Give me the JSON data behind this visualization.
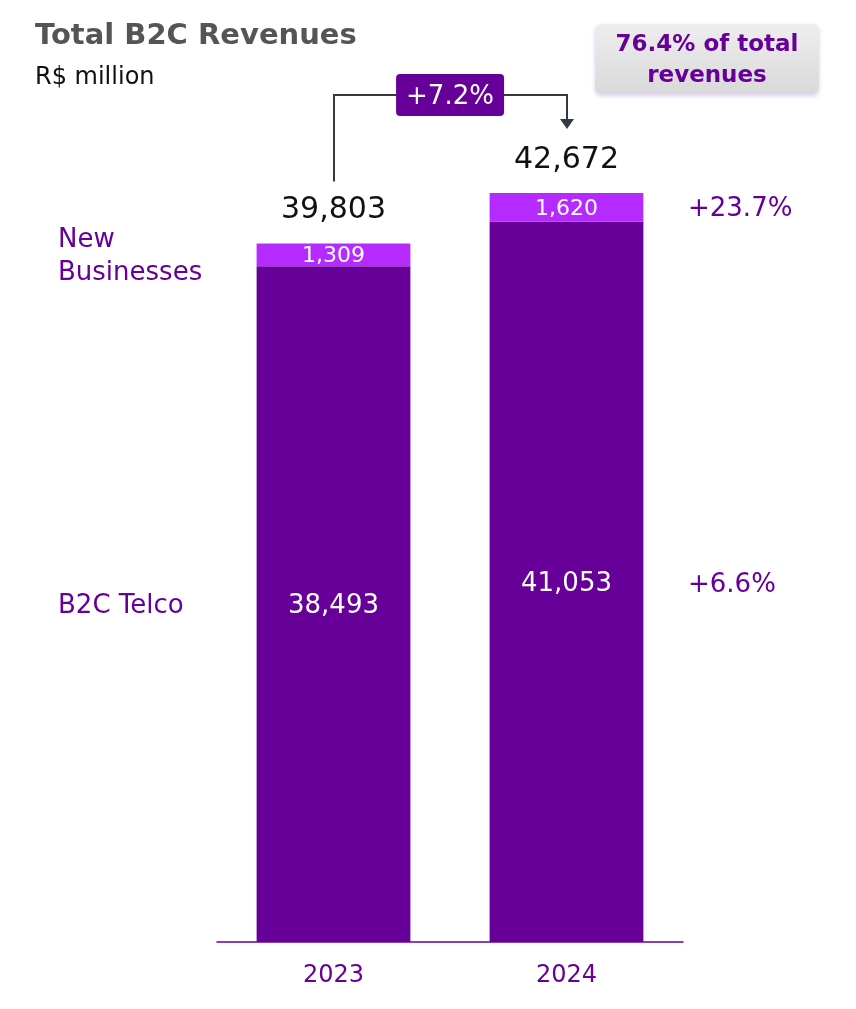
{
  "chart_data": {
    "type": "bar",
    "title": "Total B2C Revenues",
    "subtitle": "R$ million",
    "categories": [
      "2023",
      "2024"
    ],
    "stacked": true,
    "legend": false,
    "series": [
      {
        "name": "B2C Telco",
        "color": "#660099",
        "values": [
          38493,
          41053
        ],
        "value_labels": [
          "38,493",
          "41,053"
        ]
      },
      {
        "name": "New Businesses",
        "color": "#b52bff",
        "values": [
          1309,
          1620
        ],
        "value_labels": [
          "1,309",
          "1,620"
        ]
      }
    ],
    "totals": [
      "39,803",
      "42,672"
    ],
    "annotations": [
      "+7.2%",
      "76.4% of total revenues",
      "+23.7%",
      "+6.6%"
    ]
  }
}
